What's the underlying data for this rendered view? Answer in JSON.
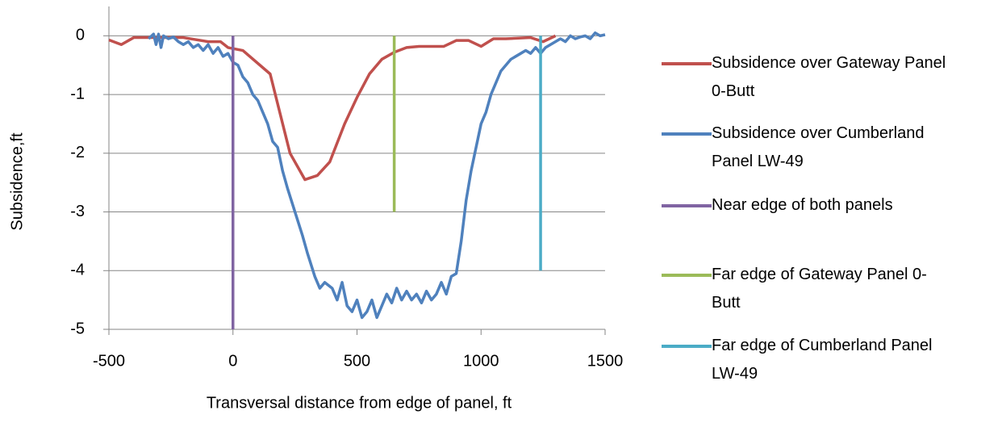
{
  "chart_data": {
    "type": "line",
    "x_label": "Transversal distance from edge of panel, ft",
    "y_label": "Subsidence,ft",
    "xlim": [
      -500,
      1500
    ],
    "xticks": [
      -500,
      0,
      500,
      1000,
      1500
    ],
    "ylim": [
      -5,
      0.5
    ],
    "yticks": [
      -5,
      -4,
      -3,
      -2,
      -1,
      0
    ],
    "grid": true,
    "legend": "right",
    "series": [
      {
        "name": "Subsidence over Gateway Panel 0-Butt",
        "color": "#c0504d",
        "x": [
          -500,
          -450,
          -400,
          -300,
          -200,
          -100,
          -50,
          -20,
          40,
          150,
          230,
          290,
          340,
          390,
          450,
          500,
          550,
          600,
          650,
          700,
          750,
          850,
          900,
          950,
          1000,
          1050,
          1100,
          1200,
          1250,
          1300
        ],
        "values": [
          -0.07,
          -0.15,
          -0.03,
          -0.03,
          -0.03,
          -0.1,
          -0.1,
          -0.2,
          -0.25,
          -0.65,
          -2.0,
          -2.45,
          -2.38,
          -2.15,
          -1.5,
          -1.05,
          -0.65,
          -0.4,
          -0.28,
          -0.2,
          -0.18,
          -0.18,
          -0.08,
          -0.08,
          -0.18,
          -0.05,
          -0.05,
          -0.03,
          -0.1,
          0
        ]
      },
      {
        "name": "Subsidence over Cumberland Panel LW-49",
        "color": "#4f81bd",
        "x": [
          -340,
          -320,
          -310,
          -300,
          -290,
          -280,
          -260,
          -240,
          -220,
          -200,
          -180,
          -160,
          -140,
          -120,
          -100,
          -80,
          -60,
          -40,
          -20,
          0,
          20,
          40,
          60,
          80,
          100,
          120,
          140,
          160,
          180,
          200,
          220,
          250,
          280,
          300,
          330,
          350,
          370,
          400,
          420,
          440,
          460,
          480,
          500,
          520,
          540,
          560,
          580,
          600,
          620,
          640,
          660,
          680,
          700,
          720,
          740,
          760,
          780,
          800,
          820,
          840,
          860,
          880,
          900,
          920,
          940,
          960,
          980,
          1000,
          1020,
          1040,
          1060,
          1080,
          1100,
          1120,
          1140,
          1160,
          1180,
          1200,
          1220,
          1240,
          1260,
          1280,
          1300,
          1320,
          1340,
          1360,
          1380,
          1400,
          1420,
          1440,
          1460,
          1480,
          1500
        ],
        "values": [
          -0.05,
          0.03,
          -0.15,
          0.03,
          -0.2,
          0,
          -0.05,
          -0.02,
          -0.1,
          -0.15,
          -0.1,
          -0.2,
          -0.15,
          -0.25,
          -0.15,
          -0.3,
          -0.2,
          -0.35,
          -0.3,
          -0.45,
          -0.5,
          -0.7,
          -0.8,
          -1.0,
          -1.1,
          -1.3,
          -1.5,
          -1.8,
          -1.9,
          -2.3,
          -2.6,
          -3.0,
          -3.4,
          -3.7,
          -4.1,
          -4.3,
          -4.2,
          -4.3,
          -4.5,
          -4.2,
          -4.6,
          -4.7,
          -4.5,
          -4.8,
          -4.7,
          -4.5,
          -4.8,
          -4.6,
          -4.4,
          -4.55,
          -4.3,
          -4.5,
          -4.35,
          -4.5,
          -4.4,
          -4.55,
          -4.35,
          -4.5,
          -4.4,
          -4.2,
          -4.4,
          -4.1,
          -4.05,
          -3.5,
          -2.8,
          -2.3,
          -1.9,
          -1.5,
          -1.3,
          -1.0,
          -0.8,
          -0.6,
          -0.5,
          -0.4,
          -0.35,
          -0.3,
          -0.25,
          -0.3,
          -0.2,
          -0.3,
          -0.2,
          -0.15,
          -0.1,
          -0.05,
          -0.1,
          0,
          -0.05,
          -0.02,
          0,
          -0.05,
          0.05,
          0,
          0.02
        ]
      },
      {
        "name": "Near edge of both panels",
        "color": "#8064a2",
        "x": [
          0,
          0
        ],
        "values": [
          0,
          -5
        ]
      },
      {
        "name": "Far edge of Gateway Panel 0-Butt",
        "color": "#9bbb59",
        "x": [
          650,
          650
        ],
        "values": [
          0,
          -3
        ]
      },
      {
        "name": "Far edge of Cumberland Panel LW-49",
        "color": "#4bacc6",
        "x": [
          1240,
          1240
        ],
        "values": [
          0,
          -4
        ]
      }
    ]
  }
}
